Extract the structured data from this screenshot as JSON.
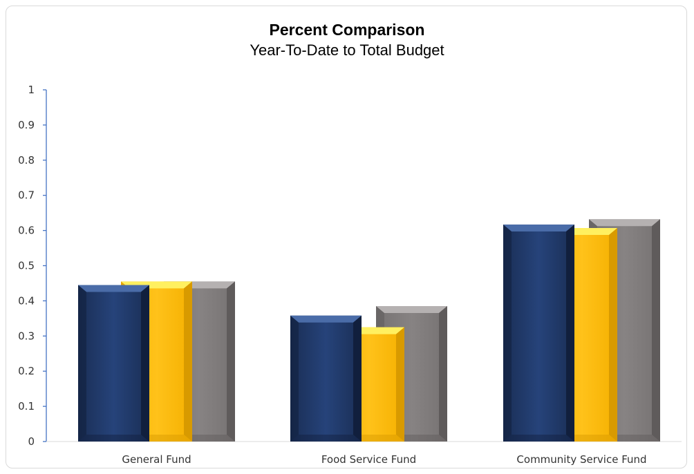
{
  "chart_data": {
    "type": "bar",
    "title": "Percent Comparison",
    "subtitle": "Year-To-Date to Total Budget",
    "categories": [
      "General Fund",
      "Food Service Fund",
      "Community Service Fund"
    ],
    "series": [
      {
        "color": "#203864",
        "values": [
          0.445,
          0.358,
          0.617
        ]
      },
      {
        "color": "#fbb817",
        "values": [
          0.455,
          0.325,
          0.607
        ]
      },
      {
        "color": "#7f7b7b",
        "values": [
          0.455,
          0.385,
          0.632
        ]
      }
    ],
    "ylim": [
      0,
      1
    ],
    "yticks": [
      "0",
      "0.1",
      "0.2",
      "0.3",
      "0.4",
      "0.5",
      "0.6",
      "0.7",
      "0.8",
      "0.9",
      "1"
    ],
    "grid": false,
    "legend": "none"
  }
}
